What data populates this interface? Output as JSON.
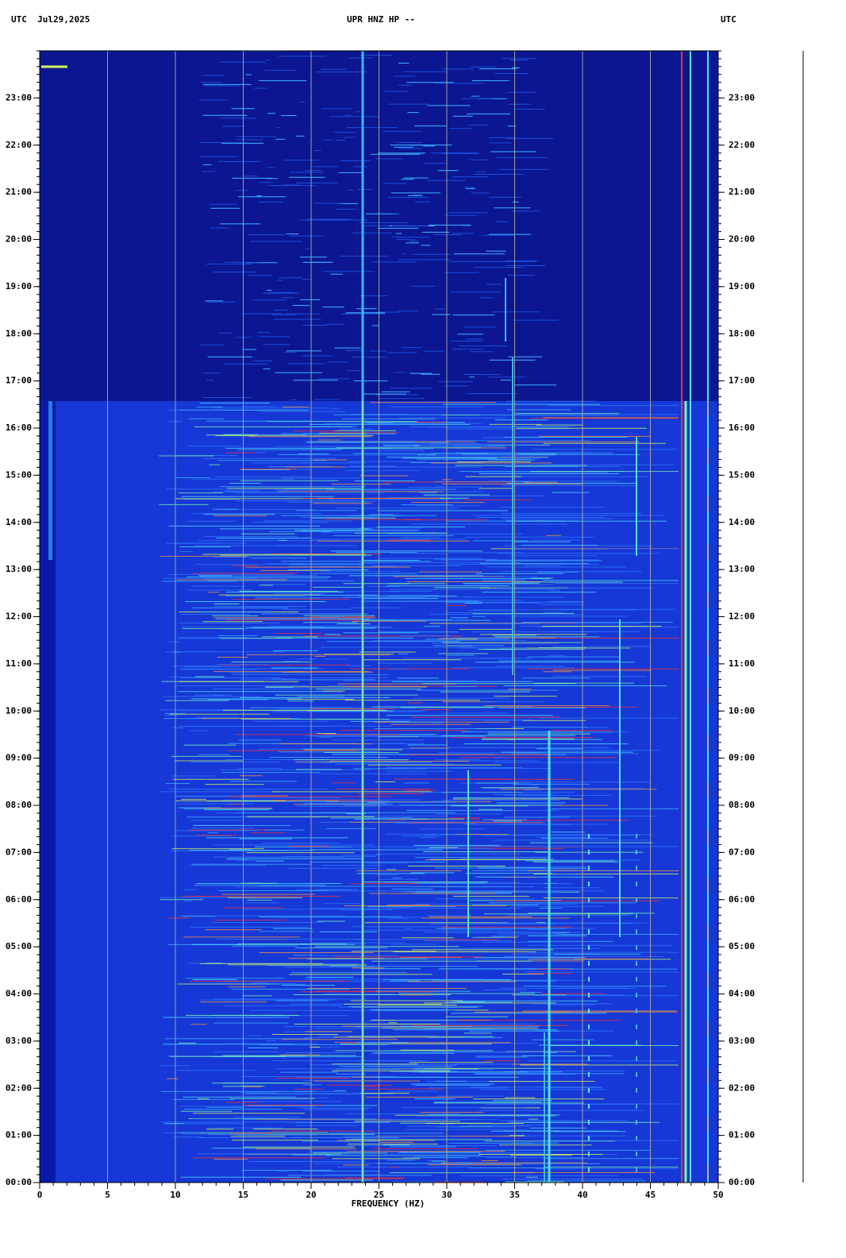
{
  "chart_data": {
    "type": "spectrogram",
    "title": "UPR HNZ HP --",
    "left_header": "UTC  Jul29,2025",
    "right_header": "UTC",
    "x_label": "FREQUENCY (HZ)",
    "xlim": [
      0,
      50
    ],
    "xticks": [
      0,
      5,
      10,
      15,
      20,
      25,
      30,
      35,
      40,
      45,
      50
    ],
    "ylim": [
      0,
      24
    ],
    "yticks": [
      {
        "value": 0,
        "label": "00:00"
      },
      {
        "value": 1,
        "label": "01:00"
      },
      {
        "value": 2,
        "label": "02:00"
      },
      {
        "value": 3,
        "label": "03:00"
      },
      {
        "value": 4,
        "label": "04:00"
      },
      {
        "value": 5,
        "label": "05:00"
      },
      {
        "value": 6,
        "label": "06:00"
      },
      {
        "value": 7,
        "label": "07:00"
      },
      {
        "value": 8,
        "label": "08:00"
      },
      {
        "value": 9,
        "label": "09:00"
      },
      {
        "value": 10,
        "label": "10:00"
      },
      {
        "value": 11,
        "label": "11:00"
      },
      {
        "value": 12,
        "label": "12:00"
      },
      {
        "value": 13,
        "label": "13:00"
      },
      {
        "value": 14,
        "label": "14:00"
      },
      {
        "value": 15,
        "label": "15:00"
      },
      {
        "value": 16,
        "label": "16:00"
      },
      {
        "value": 17,
        "label": "17:00"
      },
      {
        "value": 18,
        "label": "18:00"
      },
      {
        "value": 19,
        "label": "19:00"
      },
      {
        "value": 20,
        "label": "20:00"
      },
      {
        "value": 21,
        "label": "21:00"
      },
      {
        "value": 22,
        "label": "22:00"
      },
      {
        "value": 23,
        "label": "23:00"
      }
    ],
    "grid": true
  }
}
